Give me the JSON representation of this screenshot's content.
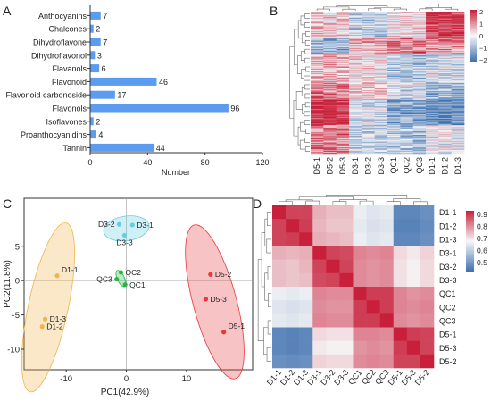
{
  "panels": {
    "a": "A",
    "b": "B",
    "c": "C",
    "d": "D"
  },
  "colors": {
    "bar": "#5b9bf0",
    "d1": "#f0b44b",
    "d3": "#68cce0",
    "d5": "#e8383d",
    "qc": "#2cb34a",
    "heat_low": "#3f71b0",
    "heat_mid": "#f7f7f7",
    "heat_high": "#c8203a"
  },
  "chart_data": [
    {
      "type": "bar",
      "orientation": "horizontal",
      "categories": [
        "Anthocyanins",
        "Chalcones",
        "Dihydroflavone",
        "Dihydroflavonol",
        "Flavanols",
        "Flavonoid",
        "Flavonoid carbonoside",
        "Flavonols",
        "Isoflavones",
        "Proanthocyanidins",
        "Tannin"
      ],
      "values": [
        7,
        2,
        7,
        3,
        6,
        46,
        17,
        96,
        2,
        4,
        44
      ],
      "xlabel": "Number",
      "ylabel": "",
      "xlim": [
        0,
        120
      ],
      "xticks": [
        "0",
        "40",
        "80",
        "120"
      ],
      "grid": false
    },
    {
      "type": "heatmap",
      "columns": [
        "D5-1",
        "D5-2",
        "D5-3",
        "D3-1",
        "D3-2",
        "D3-3",
        "QC1",
        "QC2",
        "QC3",
        "D1-1",
        "D1-2",
        "D1-3"
      ],
      "row_count": 235,
      "row_dendrogram": true,
      "column_dendrogram": true,
      "color_scale": {
        "min": -2,
        "max": 2,
        "ticks": [
          "2",
          "1",
          "0",
          "−1",
          "−2"
        ]
      }
    },
    {
      "type": "scatter",
      "xlabel": "PC1(42.9%)",
      "ylabel": "PC2(11.8%)",
      "xlim": [
        -17,
        21
      ],
      "ylim": [
        -13,
        12
      ],
      "xticks": [
        "-10",
        "0",
        "10"
      ],
      "yticks": [
        "5",
        "0",
        "-5",
        "-10"
      ],
      "grid": false,
      "series": [
        {
          "group": "D1",
          "points": [
            {
              "label": "D1-1",
              "x": -11.5,
              "y": 0.7
            },
            {
              "label": "D1-3",
              "x": -13.5,
              "y": -5.6
            },
            {
              "label": "D1-2",
              "x": -14.0,
              "y": -6.7
            }
          ],
          "ellipse": {
            "cx": -13.0,
            "cy": -3.9,
            "rx": 3.3,
            "ry": 12.6,
            "angle": 12
          }
        },
        {
          "group": "D3",
          "points": [
            {
              "label": "D3-2",
              "x": -1.2,
              "y": 8.2
            },
            {
              "label": "D3-1",
              "x": 1.0,
              "y": 8.1
            },
            {
              "label": "D3-3",
              "x": -0.3,
              "y": 6.6
            }
          ],
          "ellipse": {
            "cx": 0.0,
            "cy": 7.6,
            "rx": 3.8,
            "ry": 1.8,
            "angle": -8
          }
        },
        {
          "group": "QC",
          "points": [
            {
              "label": "QC2",
              "x": -0.9,
              "y": 1.2
            },
            {
              "label": "QC3",
              "x": -1.6,
              "y": 0.2
            },
            {
              "label": "QC1",
              "x": -0.2,
              "y": -0.6
            }
          ],
          "ellipse": {
            "cx": -0.9,
            "cy": 0.3,
            "rx": 0.6,
            "ry": 1.3,
            "angle": -25
          }
        },
        {
          "group": "D5",
          "points": [
            {
              "label": "D5-2",
              "x": 14.0,
              "y": 0.9
            },
            {
              "label": "D5-3",
              "x": 13.2,
              "y": -2.7
            },
            {
              "label": "D5-1",
              "x": 16.2,
              "y": -7.5
            }
          ],
          "ellipse": {
            "cx": 14.7,
            "cy": -3.1,
            "rx": 3.6,
            "ry": 11.6,
            "angle": -15
          }
        }
      ]
    },
    {
      "type": "heatmap",
      "rows": [
        "D1-1",
        "D1-2",
        "D1-3",
        "D3-1",
        "D3-2",
        "D3-3",
        "QC1",
        "QC2",
        "QC3",
        "D5-1",
        "D5-3",
        "D5-2"
      ],
      "columns": [
        "D1-1",
        "D1-2",
        "D1-3",
        "D3-1",
        "D3-2",
        "D3-3",
        "QC1",
        "QC2",
        "QC3",
        "D5-1",
        "D5-3",
        "D5-2"
      ],
      "values": [
        [
          1.0,
          0.95,
          0.95,
          0.8,
          0.78,
          0.78,
          0.68,
          0.66,
          0.67,
          0.45,
          0.45,
          0.47
        ],
        [
          0.95,
          1.0,
          0.96,
          0.79,
          0.77,
          0.77,
          0.67,
          0.65,
          0.66,
          0.44,
          0.44,
          0.46
        ],
        [
          0.95,
          0.96,
          1.0,
          0.8,
          0.79,
          0.78,
          0.68,
          0.66,
          0.67,
          0.45,
          0.45,
          0.47
        ],
        [
          0.8,
          0.79,
          0.8,
          1.0,
          0.95,
          0.94,
          0.86,
          0.85,
          0.86,
          0.74,
          0.72,
          0.75
        ],
        [
          0.78,
          0.77,
          0.79,
          0.95,
          1.0,
          0.95,
          0.85,
          0.84,
          0.85,
          0.73,
          0.71,
          0.74
        ],
        [
          0.78,
          0.77,
          0.78,
          0.94,
          0.95,
          1.0,
          0.85,
          0.84,
          0.85,
          0.73,
          0.71,
          0.74
        ],
        [
          0.68,
          0.67,
          0.68,
          0.86,
          0.85,
          0.85,
          1.0,
          0.96,
          0.96,
          0.86,
          0.84,
          0.85
        ],
        [
          0.66,
          0.65,
          0.66,
          0.85,
          0.84,
          0.84,
          0.96,
          1.0,
          0.96,
          0.86,
          0.85,
          0.86
        ],
        [
          0.67,
          0.66,
          0.67,
          0.86,
          0.85,
          0.85,
          0.96,
          0.96,
          1.0,
          0.85,
          0.84,
          0.85
        ],
        [
          0.45,
          0.44,
          0.45,
          0.74,
          0.73,
          0.73,
          0.86,
          0.86,
          0.85,
          1.0,
          0.96,
          0.95
        ],
        [
          0.45,
          0.44,
          0.45,
          0.72,
          0.71,
          0.71,
          0.84,
          0.85,
          0.84,
          0.96,
          1.0,
          0.95
        ],
        [
          0.47,
          0.46,
          0.47,
          0.75,
          0.74,
          0.74,
          0.85,
          0.86,
          0.85,
          0.95,
          0.95,
          1.0
        ]
      ],
      "row_dendrogram": true,
      "column_dendrogram": true,
      "color_scale": {
        "min": 0.4,
        "max": 1.0,
        "ticks": [
          "0.9",
          "0.8",
          "0.7",
          "0.6",
          "0.5"
        ]
      }
    }
  ]
}
